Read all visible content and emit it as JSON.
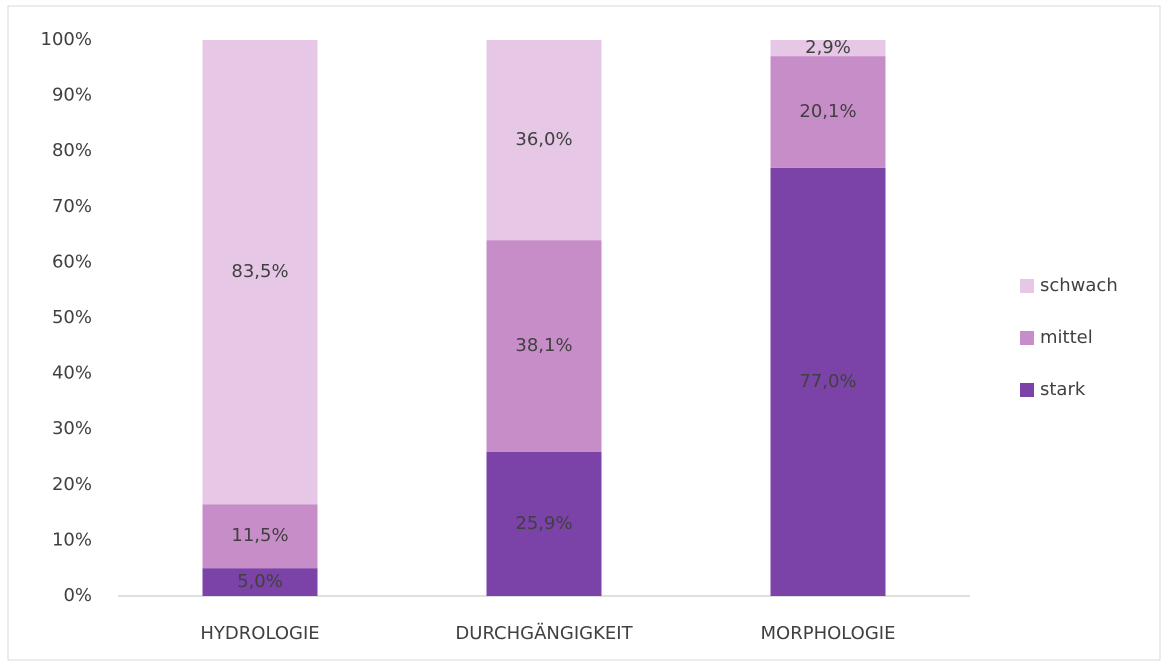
{
  "chart_data": {
    "type": "stacked_bar",
    "categories": [
      "HYDROLOGIE",
      "DURCHGÄNGIGKEIT",
      "MORPHOLOGIE"
    ],
    "series": [
      {
        "name": "stark",
        "color": "#7b42a8",
        "values": [
          5.0,
          25.9,
          77.0
        ],
        "value_labels": [
          "5,0%",
          "25,9%",
          "77,0%"
        ]
      },
      {
        "name": "mittel",
        "color": "#c78dc8",
        "values": [
          11.5,
          38.1,
          20.1
        ],
        "value_labels": [
          "11,5%",
          "38,1%",
          "20,1%"
        ]
      },
      {
        "name": "schwach",
        "color": "#e6c8e6",
        "values": [
          83.5,
          36.0,
          2.9
        ],
        "value_labels": [
          "83,5%",
          "36,0%",
          "2,9%"
        ]
      }
    ],
    "ylim": [
      0,
      100
    ],
    "yticks": [
      {
        "value": 0,
        "label": "0%"
      },
      {
        "value": 10,
        "label": "10%"
      },
      {
        "value": 20,
        "label": "20%"
      },
      {
        "value": 30,
        "label": "30%"
      },
      {
        "value": 40,
        "label": "40%"
      },
      {
        "value": 50,
        "label": "50%"
      },
      {
        "value": 60,
        "label": "60%"
      },
      {
        "value": 70,
        "label": "70%"
      },
      {
        "value": 80,
        "label": "80%"
      },
      {
        "value": 90,
        "label": "90%"
      },
      {
        "value": 100,
        "label": "100%"
      }
    ],
    "legend": "right"
  }
}
